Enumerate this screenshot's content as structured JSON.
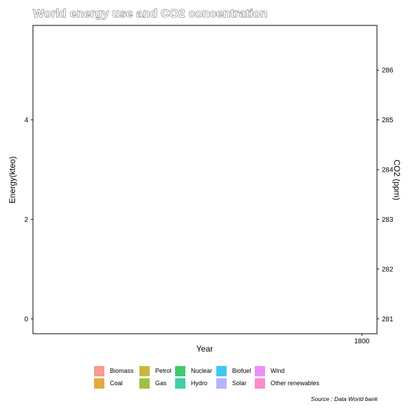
{
  "title": "World energy use and CO2 concentration",
  "caption": "Source : Data World bank",
  "chart_data": {
    "type": "area",
    "title": "World energy use and CO2 concentration",
    "xlabel": "Year",
    "ylabel": "Energy(kteo)",
    "y2label": "CO2 (ppm)",
    "x_ticks": [
      "1800"
    ],
    "y_ticks": [
      "0",
      "2",
      "4"
    ],
    "y2_ticks": [
      "281",
      "282",
      "283",
      "284",
      "285",
      "286"
    ],
    "ylim": [
      -0.3,
      5.9
    ],
    "y2lim": [
      280.7,
      286.9
    ],
    "x": [
      1800
    ],
    "series": [],
    "legend_position": "bottom",
    "grid": false
  },
  "legend": [
    {
      "label": "Biomass",
      "color": "#F8766D"
    },
    {
      "label": "Coal",
      "color": "#DE8C00"
    },
    {
      "label": "Petrol",
      "color": "#B79F00"
    },
    {
      "label": "Gas",
      "color": "#7CAE00"
    },
    {
      "label": "Nuclear",
      "color": "#00BA38"
    },
    {
      "label": "Hydro",
      "color": "#00C08B"
    },
    {
      "label": "Biofuel",
      "color": "#00B4F0"
    },
    {
      "label": "Solar",
      "color": "#9B9BFF"
    },
    {
      "label": "Wind",
      "color": "#E76BF3"
    },
    {
      "label": "Other renewables",
      "color": "#FF62BC"
    }
  ]
}
